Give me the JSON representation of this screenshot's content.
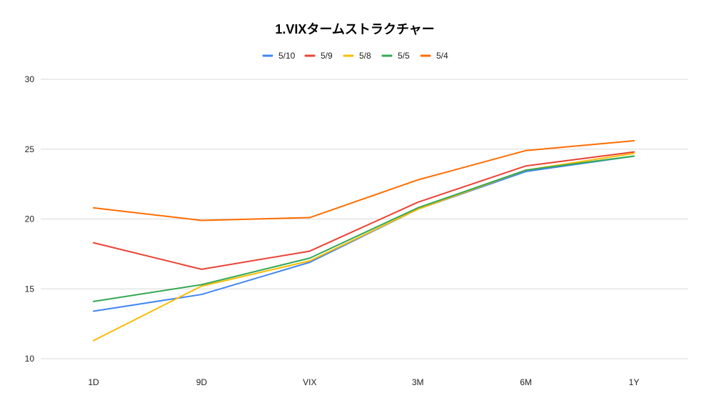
{
  "chart_data": {
    "type": "line",
    "title": "1.VIXタームストラクチャー",
    "xlabel": "",
    "ylabel": "",
    "categories": [
      "1D",
      "9D",
      "VIX",
      "3M",
      "6M",
      "1Y"
    ],
    "ylim": [
      10,
      30
    ],
    "yticks": [
      10,
      15,
      20,
      25,
      30
    ],
    "grid": true,
    "legend_position": "top-center",
    "series": [
      {
        "name": "5/10",
        "color": "#4285f4",
        "values": [
          13.4,
          14.6,
          16.9,
          20.7,
          23.4,
          24.5
        ]
      },
      {
        "name": "5/9",
        "color": "#ea4335",
        "values": [
          18.3,
          16.4,
          17.7,
          21.2,
          23.8,
          24.8
        ]
      },
      {
        "name": "5/8",
        "color": "#fbbc04",
        "values": [
          11.3,
          15.2,
          17.0,
          20.7,
          23.5,
          24.7
        ]
      },
      {
        "name": "5/5",
        "color": "#34a853",
        "values": [
          14.1,
          15.3,
          17.2,
          20.8,
          23.5,
          24.5
        ]
      },
      {
        "name": "5/4",
        "color": "#ff6d01",
        "values": [
          20.8,
          19.9,
          20.1,
          22.8,
          24.9,
          25.6
        ]
      }
    ]
  }
}
